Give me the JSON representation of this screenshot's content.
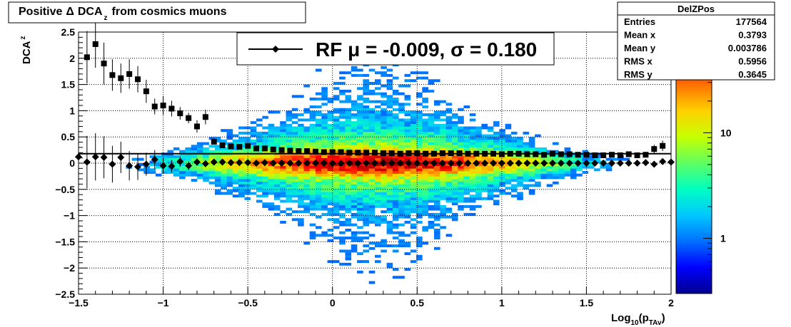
{
  "title_box": {
    "prefix": "Positive",
    "delta": "Δ",
    "main": "DCA",
    "sub": "z",
    "suffix": "from cosmics muons"
  },
  "stats_box": {
    "name": "DelZPos",
    "rows": [
      {
        "label": "Entries",
        "value": "177564"
      },
      {
        "label": "Mean x",
        "value": "0.3793"
      },
      {
        "label": "Mean y",
        "value": "0.003786"
      },
      {
        "label": "RMS x",
        "value": "0.5956"
      },
      {
        "label": "RMS y",
        "value": "0.3645"
      }
    ]
  },
  "legend": {
    "text": "RF μ = -0.009, σ =   0.180"
  },
  "colors": {
    "frame": "#000000",
    "marker": "#000000",
    "fit_line": "#000000",
    "palette": [
      "#00008f",
      "#0000ff",
      "#0070ff",
      "#00c8ff",
      "#00ffc0",
      "#60ff60",
      "#c8ff00",
      "#ffd000",
      "#ff7000",
      "#ff0000",
      "#b00000"
    ]
  },
  "chart_data": {
    "type": "heatmap",
    "title": "Positive Δ DCAz from cosmics muons",
    "xlabel": "Log10(pTAv)",
    "ylabel": "DCAz",
    "xlim": [
      -1.5,
      2
    ],
    "ylim": [
      -2.5,
      2.5
    ],
    "grid": true,
    "log_z": true,
    "legend_placement": "top-center",
    "xticks": [
      "−1.5",
      "−1",
      "−0.5",
      "0",
      "0.5",
      "1",
      "1.5",
      "2"
    ],
    "xtick_values": [
      -1.5,
      -1,
      -0.5,
      0,
      0.5,
      1,
      1.5,
      2
    ],
    "yticks": [
      "−2.5",
      "−2",
      "−1.5",
      "−1",
      "−0.5",
      "0",
      "0.5",
      "1",
      "1.5",
      "2",
      "2.5"
    ],
    "ytick_values": [
      -2.5,
      -2,
      -1.5,
      -1,
      -0.5,
      0,
      0.5,
      1,
      1.5,
      2,
      2.5
    ],
    "zticks": [
      "1",
      "10"
    ],
    "ztick_values": [
      1,
      10
    ],
    "zlim": [
      0.3,
      90
    ],
    "fit_line": {
      "y": 0.18
    },
    "series": [
      {
        "marker": "square",
        "x": [
          -1.45,
          -1.4,
          -1.35,
          -1.3,
          -1.25,
          -1.2,
          -1.15,
          -1.1,
          -1.05,
          -1.0,
          -0.95,
          -0.9,
          -0.85,
          -0.8,
          -0.75,
          -0.7,
          -0.65,
          -0.6,
          -0.55,
          -0.5,
          -0.45,
          -0.4,
          -0.35,
          -0.3,
          -0.25,
          -0.2,
          -0.15,
          -0.1,
          -0.05,
          0.0,
          0.05,
          0.1,
          0.15,
          0.2,
          0.25,
          0.3,
          0.35,
          0.4,
          0.45,
          0.5,
          0.55,
          0.6,
          0.65,
          0.7,
          0.75,
          0.8,
          0.85,
          0.9,
          0.95,
          1.0,
          1.05,
          1.1,
          1.15,
          1.2,
          1.25,
          1.3,
          1.35,
          1.4,
          1.45,
          1.5,
          1.55,
          1.6,
          1.65,
          1.7,
          1.75,
          1.8,
          1.85,
          1.9,
          1.95
        ],
        "y": [
          2.02,
          2.27,
          1.9,
          1.68,
          1.62,
          1.7,
          1.6,
          1.37,
          1.08,
          1.1,
          1.04,
          0.95,
          0.86,
          0.7,
          0.88,
          0.41,
          0.34,
          0.32,
          0.31,
          0.33,
          0.28,
          0.28,
          0.26,
          0.25,
          0.24,
          0.23,
          0.23,
          0.22,
          0.21,
          0.21,
          0.21,
          0.2,
          0.2,
          0.2,
          0.2,
          0.19,
          0.19,
          0.18,
          0.19,
          0.19,
          0.18,
          0.18,
          0.19,
          0.19,
          0.19,
          0.18,
          0.18,
          0.18,
          0.18,
          0.17,
          0.18,
          0.18,
          0.17,
          0.17,
          0.16,
          0.18,
          0.17,
          0.17,
          0.16,
          0.16,
          0.15,
          0.15,
          0.16,
          0.15,
          0.17,
          0.15,
          0.16,
          0.27,
          0.33
        ],
        "err": [
          0.5,
          0.45,
          0.4,
          0.3,
          0.28,
          0.28,
          0.25,
          0.22,
          0.15,
          0.18,
          0.15,
          0.12,
          0.1,
          0.12,
          0.14,
          0.04,
          0.03,
          0.02,
          0.02,
          0.02,
          0.02,
          0.02,
          0.02,
          0.02,
          0.02,
          0.02,
          0.02,
          0.02,
          0.02,
          0.02,
          0.02,
          0.02,
          0.02,
          0.02,
          0.02,
          0.02,
          0.02,
          0.02,
          0.02,
          0.02,
          0.02,
          0.02,
          0.02,
          0.02,
          0.02,
          0.02,
          0.02,
          0.02,
          0.02,
          0.02,
          0.02,
          0.02,
          0.02,
          0.02,
          0.02,
          0.02,
          0.02,
          0.03,
          0.03,
          0.03,
          0.03,
          0.03,
          0.03,
          0.04,
          0.04,
          0.04,
          0.05,
          0.08,
          0.1
        ]
      },
      {
        "marker": "diamond",
        "x": [
          -1.5,
          -1.45,
          -1.4,
          -1.35,
          -1.3,
          -1.25,
          -1.2,
          -1.15,
          -1.1,
          -1.05,
          -1.0,
          -0.95,
          -0.9,
          -0.85,
          -0.8,
          -0.75,
          -0.7,
          -0.65,
          -0.6,
          -0.55,
          -0.5,
          -0.45,
          -0.4,
          -0.35,
          -0.3,
          -0.25,
          -0.2,
          -0.15,
          -0.1,
          -0.05,
          0.0,
          0.05,
          0.1,
          0.15,
          0.2,
          0.25,
          0.3,
          0.35,
          0.4,
          0.45,
          0.5,
          0.55,
          0.6,
          0.65,
          0.7,
          0.75,
          0.8,
          0.85,
          0.9,
          0.95,
          1.0,
          1.05,
          1.1,
          1.15,
          1.2,
          1.25,
          1.3,
          1.35,
          1.4,
          1.45,
          1.5,
          1.55,
          1.6,
          1.65,
          1.7,
          1.75,
          1.8,
          1.85,
          1.9,
          1.95,
          2.0
        ],
        "y": [
          0.12,
          0.02,
          0.12,
          0.11,
          -0.02,
          0.11,
          -0.05,
          -0.07,
          -0.02,
          0.07,
          -0.05,
          -0.06,
          0.03,
          -0.05,
          0.02,
          -0.01,
          0.02,
          0.02,
          0.01,
          0.01,
          0.01,
          0.0,
          0.01,
          0.0,
          0.0,
          0.0,
          0.0,
          0.0,
          0.0,
          0.0,
          0.0,
          0.0,
          0.0,
          0.0,
          0.0,
          0.0,
          0.0,
          0.0,
          0.0,
          0.0,
          0.0,
          0.0,
          0.0,
          0.0,
          0.0,
          0.0,
          0.0,
          0.0,
          0.0,
          0.0,
          0.0,
          0.0,
          0.0,
          0.0,
          0.0,
          0.0,
          0.0,
          0.0,
          0.0,
          0.0,
          0.0,
          0.0,
          0.0,
          0.0,
          0.0,
          0.0,
          0.0,
          0.01,
          -0.02,
          0.03,
          0.02
        ],
        "err": [
          0.6,
          0.5,
          0.45,
          0.4,
          0.35,
          0.3,
          0.28,
          0.25,
          0.22,
          0.18,
          0.15,
          0.12,
          0.1,
          0.08,
          0.07,
          0.05,
          0.04,
          0.03,
          0.02,
          0.02,
          0.02,
          0.02,
          0.02,
          0.02,
          0.02,
          0.02,
          0.02,
          0.02,
          0.02,
          0.02,
          0.02,
          0.02,
          0.02,
          0.02,
          0.02,
          0.02,
          0.02,
          0.02,
          0.02,
          0.02,
          0.02,
          0.02,
          0.02,
          0.02,
          0.02,
          0.02,
          0.02,
          0.02,
          0.02,
          0.02,
          0.02,
          0.02,
          0.02,
          0.02,
          0.02,
          0.02,
          0.02,
          0.02,
          0.02,
          0.02,
          0.02,
          0.03,
          0.03,
          0.03,
          0.03,
          0.03,
          0.03,
          0.04,
          0.05,
          0.06,
          0.06
        ]
      }
    ]
  }
}
